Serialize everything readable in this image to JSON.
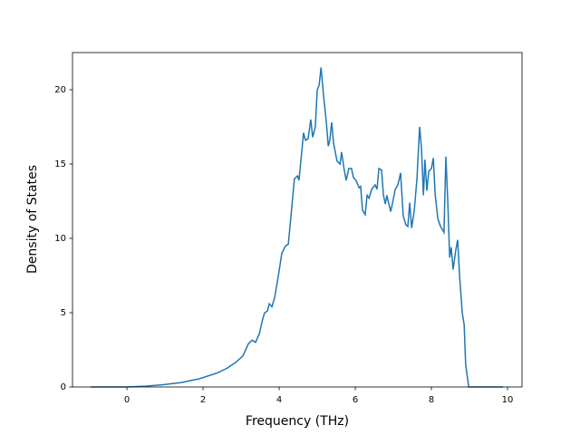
{
  "chart_data": {
    "type": "line",
    "xlabel": "Frequency (THz)",
    "ylabel": "Density of States",
    "xlim": [
      -1.43,
      10.38
    ],
    "ylim": [
      0,
      22.5
    ],
    "xticks": [
      0,
      2,
      4,
      6,
      8,
      10
    ],
    "yticks": [
      0,
      5,
      10,
      15,
      20
    ],
    "x": [
      -0.95,
      0,
      0.48,
      0.95,
      1.43,
      1.9,
      2.38,
      2.62,
      2.86,
      3.05,
      3.19,
      3.29,
      3.38,
      3.48,
      3.57,
      3.62,
      3.69,
      3.74,
      3.81,
      3.88,
      3.98,
      4.07,
      4.17,
      4.24,
      4.31,
      4.4,
      4.48,
      4.52,
      4.6,
      4.64,
      4.69,
      4.76,
      4.83,
      4.88,
      4.95,
      5.0,
      5.05,
      5.1,
      5.17,
      5.24,
      5.29,
      5.33,
      5.38,
      5.43,
      5.52,
      5.6,
      5.64,
      5.71,
      5.76,
      5.83,
      5.9,
      5.95,
      6.02,
      6.1,
      6.14,
      6.19,
      6.26,
      6.31,
      6.36,
      6.43,
      6.52,
      6.57,
      6.62,
      6.69,
      6.74,
      6.79,
      6.83,
      6.93,
      6.98,
      7.05,
      7.12,
      7.19,
      7.26,
      7.33,
      7.38,
      7.43,
      7.48,
      7.55,
      7.62,
      7.69,
      7.74,
      7.79,
      7.83,
      7.88,
      7.93,
      8.0,
      8.05,
      8.1,
      8.17,
      8.24,
      8.33,
      8.38,
      8.43,
      8.48,
      8.52,
      8.57,
      8.64,
      8.69,
      8.74,
      8.81,
      8.86,
      8.9,
      8.98,
      9.88
    ],
    "series": [
      {
        "name": "DOS",
        "color": "#1f77b4",
        "values": [
          0,
          0,
          0.05,
          0.15,
          0.3,
          0.55,
          0.95,
          1.25,
          1.65,
          2.1,
          2.9,
          3.15,
          3.0,
          3.6,
          4.6,
          5.0,
          5.1,
          5.6,
          5.4,
          6.0,
          7.5,
          9.0,
          9.5,
          9.6,
          11.5,
          14.0,
          14.2,
          13.9,
          16.0,
          17.1,
          16.6,
          16.7,
          18.0,
          16.8,
          17.5,
          20.0,
          20.3,
          21.5,
          19.5,
          17.8,
          16.2,
          16.6,
          17.8,
          16.4,
          15.2,
          15.0,
          15.8,
          14.6,
          13.9,
          14.7,
          14.7,
          14.1,
          13.9,
          13.4,
          13.5,
          11.9,
          11.6,
          12.9,
          12.7,
          13.3,
          13.6,
          13.3,
          14.7,
          14.6,
          12.9,
          12.3,
          12.9,
          11.8,
          12.4,
          13.3,
          13.6,
          14.4,
          11.5,
          10.9,
          10.8,
          12.4,
          10.7,
          11.9,
          14.0,
          17.5,
          16.0,
          12.9,
          15.3,
          13.2,
          14.5,
          14.7,
          15.4,
          12.9,
          11.3,
          10.8,
          10.4,
          15.5,
          12.5,
          8.7,
          9.4,
          7.9,
          9.2,
          9.9,
          7.5,
          5.0,
          4.2,
          1.5,
          0,
          0
        ]
      }
    ]
  }
}
